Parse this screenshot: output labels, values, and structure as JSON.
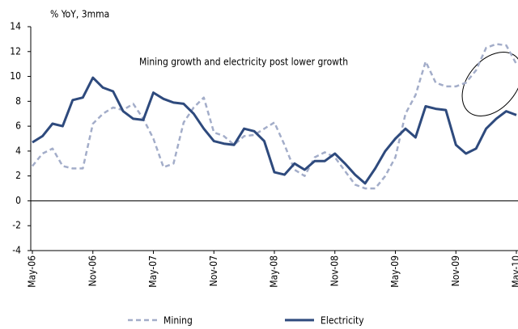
{
  "chart_data": {
    "type": "line",
    "y_label": "% YoY, 3mma",
    "annotation": "Mining growth and electricity post lower growth",
    "categories": [
      "May-06",
      null,
      null,
      null,
      null,
      null,
      "Nov-06",
      null,
      null,
      null,
      null,
      null,
      "May-07",
      null,
      null,
      null,
      null,
      null,
      "Nov-07",
      null,
      null,
      null,
      null,
      null,
      "May-08",
      null,
      null,
      null,
      null,
      null,
      "Nov-08",
      null,
      null,
      null,
      null,
      null,
      "May-09",
      null,
      null,
      null,
      null,
      null,
      "Nov-09",
      null,
      null,
      null,
      null,
      null,
      "May-10"
    ],
    "series": [
      {
        "name": "Mining",
        "color": "#a3adc9",
        "dash": true,
        "values": [
          2.8,
          3.8,
          4.2,
          2.8,
          2.6,
          2.6,
          6.2,
          7.0,
          7.5,
          7.3,
          7.8,
          6.6,
          5.0,
          2.7,
          3.0,
          6.3,
          7.5,
          8.3,
          5.5,
          5.2,
          4.5,
          5.2,
          5.3,
          5.8,
          6.3,
          4.5,
          2.5,
          2.0,
          3.5,
          3.9,
          3.5,
          2.4,
          1.3,
          1.0,
          1.0,
          2.0,
          3.5,
          7.0,
          8.5,
          11.2,
          9.5,
          9.2,
          9.2,
          9.5,
          10.5,
          12.3,
          12.6,
          12.5,
          11.0
        ]
      },
      {
        "name": "Electricity",
        "color": "#2e4a7d",
        "dash": false,
        "values": [
          4.7,
          5.2,
          6.2,
          6.0,
          8.1,
          8.3,
          9.9,
          9.1,
          8.8,
          7.2,
          6.6,
          6.5,
          8.7,
          8.2,
          7.9,
          7.8,
          7.0,
          5.8,
          4.8,
          4.6,
          4.5,
          5.8,
          5.6,
          4.8,
          2.3,
          2.1,
          3.0,
          2.5,
          3.2,
          3.2,
          3.8,
          3.0,
          2.1,
          1.4,
          2.6,
          4.0,
          5.0,
          5.8,
          5.1,
          7.6,
          7.4,
          7.3,
          4.5,
          3.8,
          4.2,
          5.8,
          6.6,
          7.2,
          6.9
        ]
      }
    ],
    "ylim": [
      -4,
      14
    ],
    "yticks": [
      -4,
      -2,
      0,
      2,
      4,
      6,
      8,
      10,
      12,
      14
    ]
  }
}
